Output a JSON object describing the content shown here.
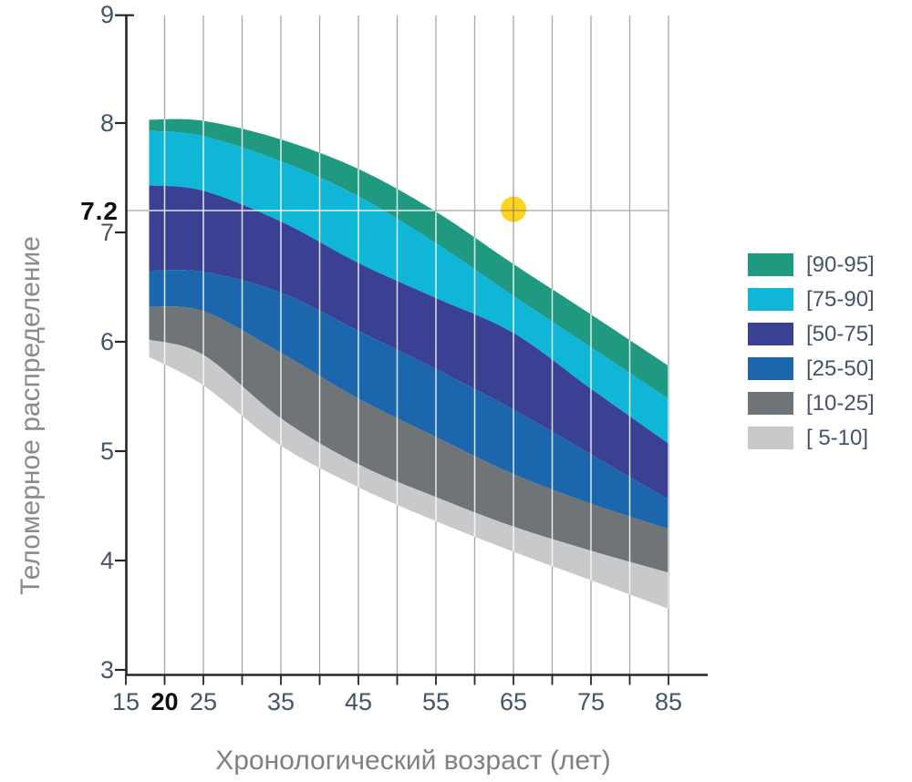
{
  "chart_data": {
    "type": "area",
    "subtype": "stacked-percentile-bands",
    "title": "",
    "xlabel": "Хронологический возраст (лет)",
    "ylabel": "Теломерное распределение",
    "xlim": [
      15,
      90
    ],
    "ylim": [
      3,
      9
    ],
    "grid": "vertical-only",
    "legend_position": "right",
    "grid_color": "#A7A7A7",
    "band_grid_color": "rgba(255,255,255,0.85)",
    "axis_color": "#262626",
    "tick_label_color": "#44546A",
    "x_ticks": [
      15,
      20,
      25,
      30,
      35,
      40,
      45,
      50,
      55,
      60,
      65,
      70,
      75,
      80,
      85
    ],
    "x_labeled_ticks": [
      {
        "age": 15,
        "label": "15",
        "bold": false
      },
      {
        "age": 20,
        "label": "20",
        "bold": true
      },
      {
        "age": 25,
        "label": "25",
        "bold": false
      },
      {
        "age": 35,
        "label": "35",
        "bold": false
      },
      {
        "age": 45,
        "label": "45",
        "bold": false
      },
      {
        "age": 55,
        "label": "55",
        "bold": false
      },
      {
        "age": 65,
        "label": "65",
        "bold": false
      },
      {
        "age": 75,
        "label": "75",
        "bold": false
      },
      {
        "age": 85,
        "label": "85",
        "bold": false
      }
    ],
    "y_ticks": [
      9,
      8,
      7,
      6,
      5,
      4,
      3
    ],
    "gridline_ages": [
      20,
      25,
      30,
      35,
      40,
      45,
      50,
      55,
      60,
      65,
      70,
      75,
      80,
      85
    ],
    "ages": [
      18,
      25,
      35,
      45,
      55,
      65,
      75,
      85
    ],
    "boundaries": {
      "p95": [
        8.03,
        8.02,
        7.85,
        7.58,
        7.19,
        6.71,
        6.25,
        5.78
      ],
      "p90": [
        7.93,
        7.88,
        7.65,
        7.33,
        6.9,
        6.42,
        5.95,
        5.48
      ],
      "p75": [
        7.43,
        7.38,
        7.1,
        6.72,
        6.4,
        6.08,
        5.57,
        5.07
      ],
      "p50": [
        6.65,
        6.64,
        6.45,
        6.1,
        5.75,
        5.38,
        4.97,
        4.56
      ],
      "p25": [
        6.32,
        6.28,
        5.9,
        5.48,
        5.13,
        4.79,
        4.52,
        4.29
      ],
      "p10": [
        6.02,
        5.88,
        5.3,
        4.88,
        4.58,
        4.31,
        4.09,
        3.89
      ],
      "p5": [
        5.86,
        5.6,
        5.05,
        4.67,
        4.36,
        4.08,
        3.82,
        3.56
      ]
    },
    "bands": [
      {
        "label": "[90-95]",
        "color": "#1F9A80",
        "upper": "p95",
        "lower": "p90"
      },
      {
        "label": "[75-90]",
        "color": "#10B6D8",
        "upper": "p90",
        "lower": "p75"
      },
      {
        "label": "[50-75]",
        "color": "#3A4092",
        "upper": "p75",
        "lower": "p50"
      },
      {
        "label": "[25-50]",
        "color": "#1B66AC",
        "upper": "p50",
        "lower": "p25"
      },
      {
        "label": "[10-25]",
        "color": "#6E7477",
        "upper": "p25",
        "lower": "p10"
      },
      {
        "label": "[ 5-10]",
        "color": "#C7C9CB",
        "upper": "p10",
        "lower": "p5"
      }
    ],
    "reference_line": {
      "value": 7.2,
      "label": "7.2"
    },
    "marker": {
      "age": 65,
      "value": 7.2,
      "color": "#FFD21E"
    }
  }
}
